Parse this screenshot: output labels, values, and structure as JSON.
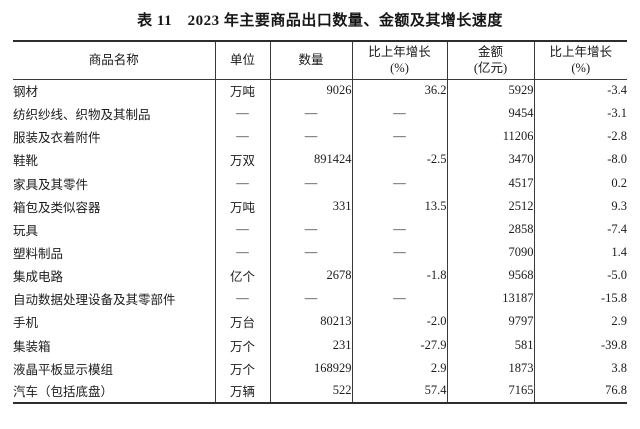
{
  "title": "表 11　2023 年主要商品出口数量、金额及其增长速度",
  "table": {
    "columns": [
      {
        "key": "name",
        "label": "商品名称"
      },
      {
        "key": "unit",
        "label": "单位"
      },
      {
        "key": "quantity",
        "label": "数量"
      },
      {
        "key": "quantity_growth",
        "label": "比上年增长",
        "sublabel": "(%)"
      },
      {
        "key": "amount",
        "label": "金额",
        "sublabel": "(亿元)"
      },
      {
        "key": "amount_growth",
        "label": "比上年增长",
        "sublabel": "(%)"
      }
    ],
    "dash": "—",
    "rows": [
      [
        "钢材",
        "万吨",
        "9026",
        "36.2",
        "5929",
        "-3.4"
      ],
      [
        "纺织纱线、织物及其制品",
        "—",
        "—",
        "—",
        "9454",
        "-3.1"
      ],
      [
        "服装及衣着附件",
        "—",
        "—",
        "—",
        "11206",
        "-2.8"
      ],
      [
        "鞋靴",
        "万双",
        "891424",
        "-2.5",
        "3470",
        "-8.0"
      ],
      [
        "家具及其零件",
        "—",
        "—",
        "—",
        "4517",
        "0.2"
      ],
      [
        "箱包及类似容器",
        "万吨",
        "331",
        "13.5",
        "2512",
        "9.3"
      ],
      [
        "玩具",
        "—",
        "—",
        "—",
        "2858",
        "-7.4"
      ],
      [
        "塑料制品",
        "—",
        "—",
        "—",
        "7090",
        "1.4"
      ],
      [
        "集成电路",
        "亿个",
        "2678",
        "-1.8",
        "9568",
        "-5.0"
      ],
      [
        "自动数据处理设备及其零部件",
        "—",
        "—",
        "—",
        "13187",
        "-15.8"
      ],
      [
        "手机",
        "万台",
        "80213",
        "-2.0",
        "9797",
        "2.9"
      ],
      [
        "集装箱",
        "万个",
        "231",
        "-27.9",
        "581",
        "-39.8"
      ],
      [
        "液晶平板显示模组",
        "万个",
        "168929",
        "2.9",
        "1873",
        "3.8"
      ],
      [
        "汽车（包括底盘）",
        "万辆",
        "522",
        "57.4",
        "7165",
        "76.8"
      ]
    ]
  }
}
